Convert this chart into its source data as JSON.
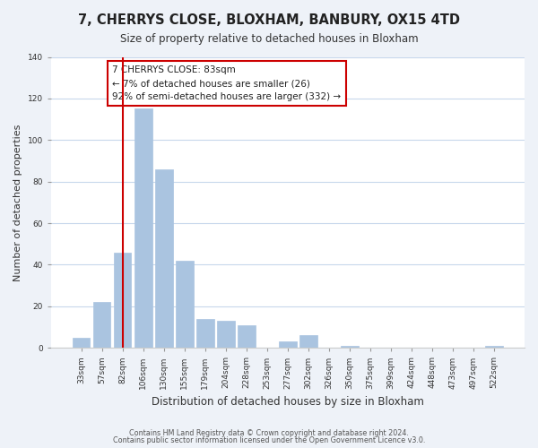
{
  "title": "7, CHERRYS CLOSE, BLOXHAM, BANBURY, OX15 4TD",
  "subtitle": "Size of property relative to detached houses in Bloxham",
  "xlabel": "Distribution of detached houses by size in Bloxham",
  "ylabel": "Number of detached properties",
  "bar_labels": [
    "33sqm",
    "57sqm",
    "82sqm",
    "106sqm",
    "130sqm",
    "155sqm",
    "179sqm",
    "204sqm",
    "228sqm",
    "253sqm",
    "277sqm",
    "302sqm",
    "326sqm",
    "350sqm",
    "375sqm",
    "399sqm",
    "424sqm",
    "448sqm",
    "473sqm",
    "497sqm",
    "522sqm"
  ],
  "bar_values": [
    5,
    22,
    46,
    115,
    86,
    42,
    14,
    13,
    11,
    0,
    3,
    6,
    0,
    1,
    0,
    0,
    0,
    0,
    0,
    0,
    1
  ],
  "bar_color": "#aac4e0",
  "vline_x": 2,
  "vline_color": "#cc0000",
  "ylim": [
    0,
    140
  ],
  "yticks": [
    0,
    20,
    40,
    60,
    80,
    100,
    120,
    140
  ],
  "annotation_title": "7 CHERRYS CLOSE: 83sqm",
  "annotation_line1": "← 7% of detached houses are smaller (26)",
  "annotation_line2": "92% of semi-detached houses are larger (332) →",
  "annotation_box_color": "#ffffff",
  "annotation_box_edge": "#cc0000",
  "footer1": "Contains HM Land Registry data © Crown copyright and database right 2024.",
  "footer2": "Contains public sector information licensed under the Open Government Licence v3.0.",
  "background_color": "#eef2f8",
  "plot_background": "#ffffff",
  "grid_color": "#c8d8ec"
}
